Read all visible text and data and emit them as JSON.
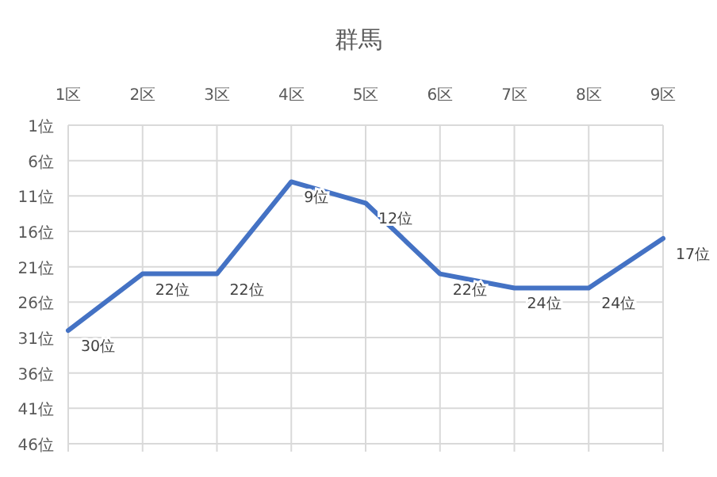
{
  "chart_data": {
    "type": "line",
    "title": "群馬",
    "categories": [
      "1区",
      "2区",
      "3区",
      "4区",
      "5区",
      "6区",
      "7区",
      "8区",
      "9区"
    ],
    "series": [
      {
        "color": "#4472c4",
        "values": [
          30,
          22,
          22,
          9,
          12,
          22,
          24,
          24,
          17
        ],
        "value_labels": [
          "30位",
          "22位",
          "22位",
          "9位",
          "12位",
          "22位",
          "24位",
          "24位",
          "17位"
        ]
      }
    ],
    "ylim": [
      46,
      1
    ],
    "yticks": [
      {
        "value": 1,
        "label": "1位"
      },
      {
        "value": 6,
        "label": "6位"
      },
      {
        "value": 11,
        "label": "11位"
      },
      {
        "value": 16,
        "label": "16位"
      },
      {
        "value": 21,
        "label": "21位"
      },
      {
        "value": 26,
        "label": "26位"
      },
      {
        "value": 31,
        "label": "31位"
      },
      {
        "value": 36,
        "label": "36位"
      },
      {
        "value": 41,
        "label": "41位"
      },
      {
        "value": 46,
        "label": "46位"
      }
    ],
    "grid": true,
    "marker": "none",
    "line_style": "solid"
  }
}
